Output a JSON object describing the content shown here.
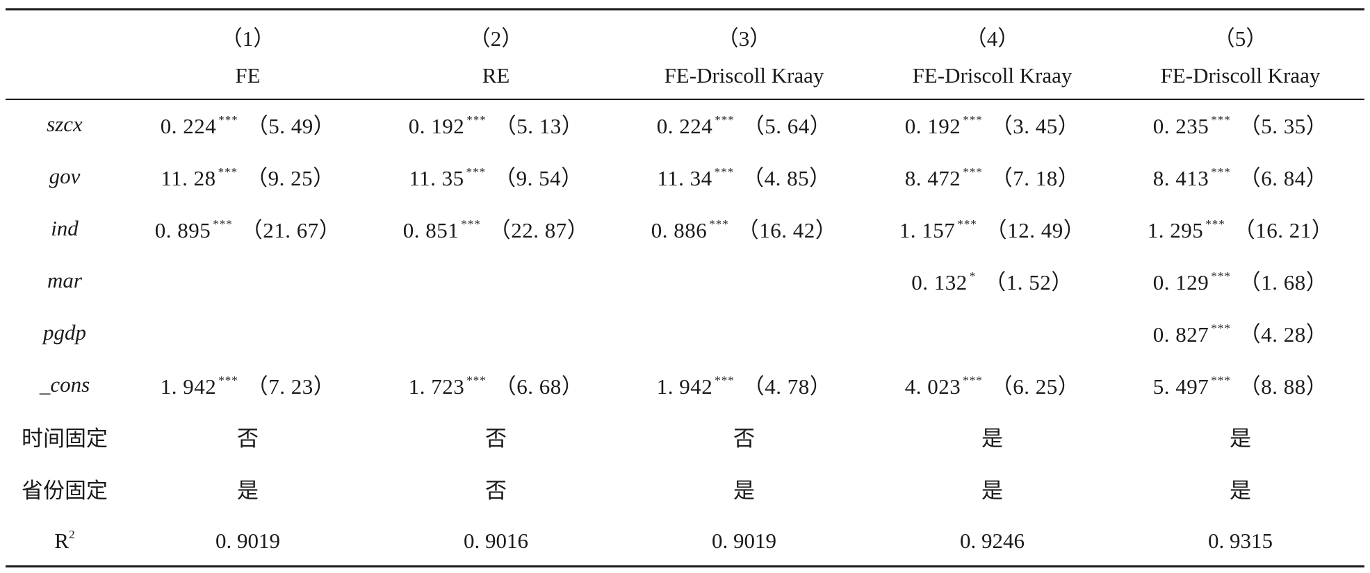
{
  "columns": {
    "numbers": [
      "（1）",
      "（2）",
      "（3）",
      "（4）",
      "（5）"
    ],
    "methods": [
      "FE",
      "RE",
      "FE-Driscoll Kraay",
      "FE-Driscoll Kraay",
      "FE-Driscoll Kraay"
    ]
  },
  "rows": [
    {
      "label": "szcx",
      "cells": [
        {
          "coef": "0. 224",
          "stars": "***",
          "t": "（5. 49）"
        },
        {
          "coef": "0. 192",
          "stars": "***",
          "t": "（5. 13）"
        },
        {
          "coef": "0. 224",
          "stars": "***",
          "t": "（5. 64）"
        },
        {
          "coef": "0. 192",
          "stars": "***",
          "t": "（3. 45）"
        },
        {
          "coef": "0. 235",
          "stars": "***",
          "t": "（5. 35）"
        }
      ]
    },
    {
      "label": "gov",
      "cells": [
        {
          "coef": "11. 28",
          "stars": "***",
          "t": "（9. 25）"
        },
        {
          "coef": "11. 35",
          "stars": "***",
          "t": "（9. 54）"
        },
        {
          "coef": "11. 34",
          "stars": "***",
          "t": "（4. 85）"
        },
        {
          "coef": "8. 472",
          "stars": "***",
          "t": "（7. 18）"
        },
        {
          "coef": "8. 413",
          "stars": "***",
          "t": "（6. 84）"
        }
      ]
    },
    {
      "label": "ind",
      "cells": [
        {
          "coef": "0. 895",
          "stars": "***",
          "t": "（21. 67）"
        },
        {
          "coef": "0. 851",
          "stars": "***",
          "t": "（22. 87）"
        },
        {
          "coef": "0. 886",
          "stars": "***",
          "t": "（16. 42）"
        },
        {
          "coef": "1. 157",
          "stars": "***",
          "t": "（12. 49）"
        },
        {
          "coef": "1. 295",
          "stars": "***",
          "t": "（16. 21）"
        }
      ]
    },
    {
      "label": "mar",
      "cells": [
        {
          "coef": "",
          "stars": "",
          "t": ""
        },
        {
          "coef": "",
          "stars": "",
          "t": ""
        },
        {
          "coef": "",
          "stars": "",
          "t": ""
        },
        {
          "coef": "0. 132",
          "stars": "*",
          "t": "（1. 52）"
        },
        {
          "coef": "0. 129",
          "stars": "***",
          "t": "（1. 68）"
        }
      ]
    },
    {
      "label": "pgdp",
      "cells": [
        {
          "coef": "",
          "stars": "",
          "t": ""
        },
        {
          "coef": "",
          "stars": "",
          "t": ""
        },
        {
          "coef": "",
          "stars": "",
          "t": ""
        },
        {
          "coef": "",
          "stars": "",
          "t": ""
        },
        {
          "coef": "0. 827",
          "stars": "***",
          "t": "（4. 28）"
        }
      ]
    },
    {
      "label": "_cons",
      "cells": [
        {
          "coef": "1. 942",
          "stars": "***",
          "t": "（7. 23）"
        },
        {
          "coef": "1. 723",
          "stars": "***",
          "t": "（6. 68）"
        },
        {
          "coef": "1. 942",
          "stars": "***",
          "t": "（4. 78）"
        },
        {
          "coef": "4. 023",
          "stars": "***",
          "t": "（6. 25）"
        },
        {
          "coef": "5. 497",
          "stars": "***",
          "t": "（8. 88）"
        }
      ]
    }
  ],
  "time_fixed": {
    "label": "时间固定",
    "values": [
      "否",
      "否",
      "否",
      "是",
      "是"
    ]
  },
  "province_fixed": {
    "label": "省份固定",
    "values": [
      "是",
      "否",
      "是",
      "是",
      "是"
    ]
  },
  "r2": {
    "label": "R",
    "superscript": "2",
    "values": [
      "0. 9019",
      "0. 9016",
      "0. 9019",
      "0. 9246",
      "0. 9315"
    ]
  }
}
